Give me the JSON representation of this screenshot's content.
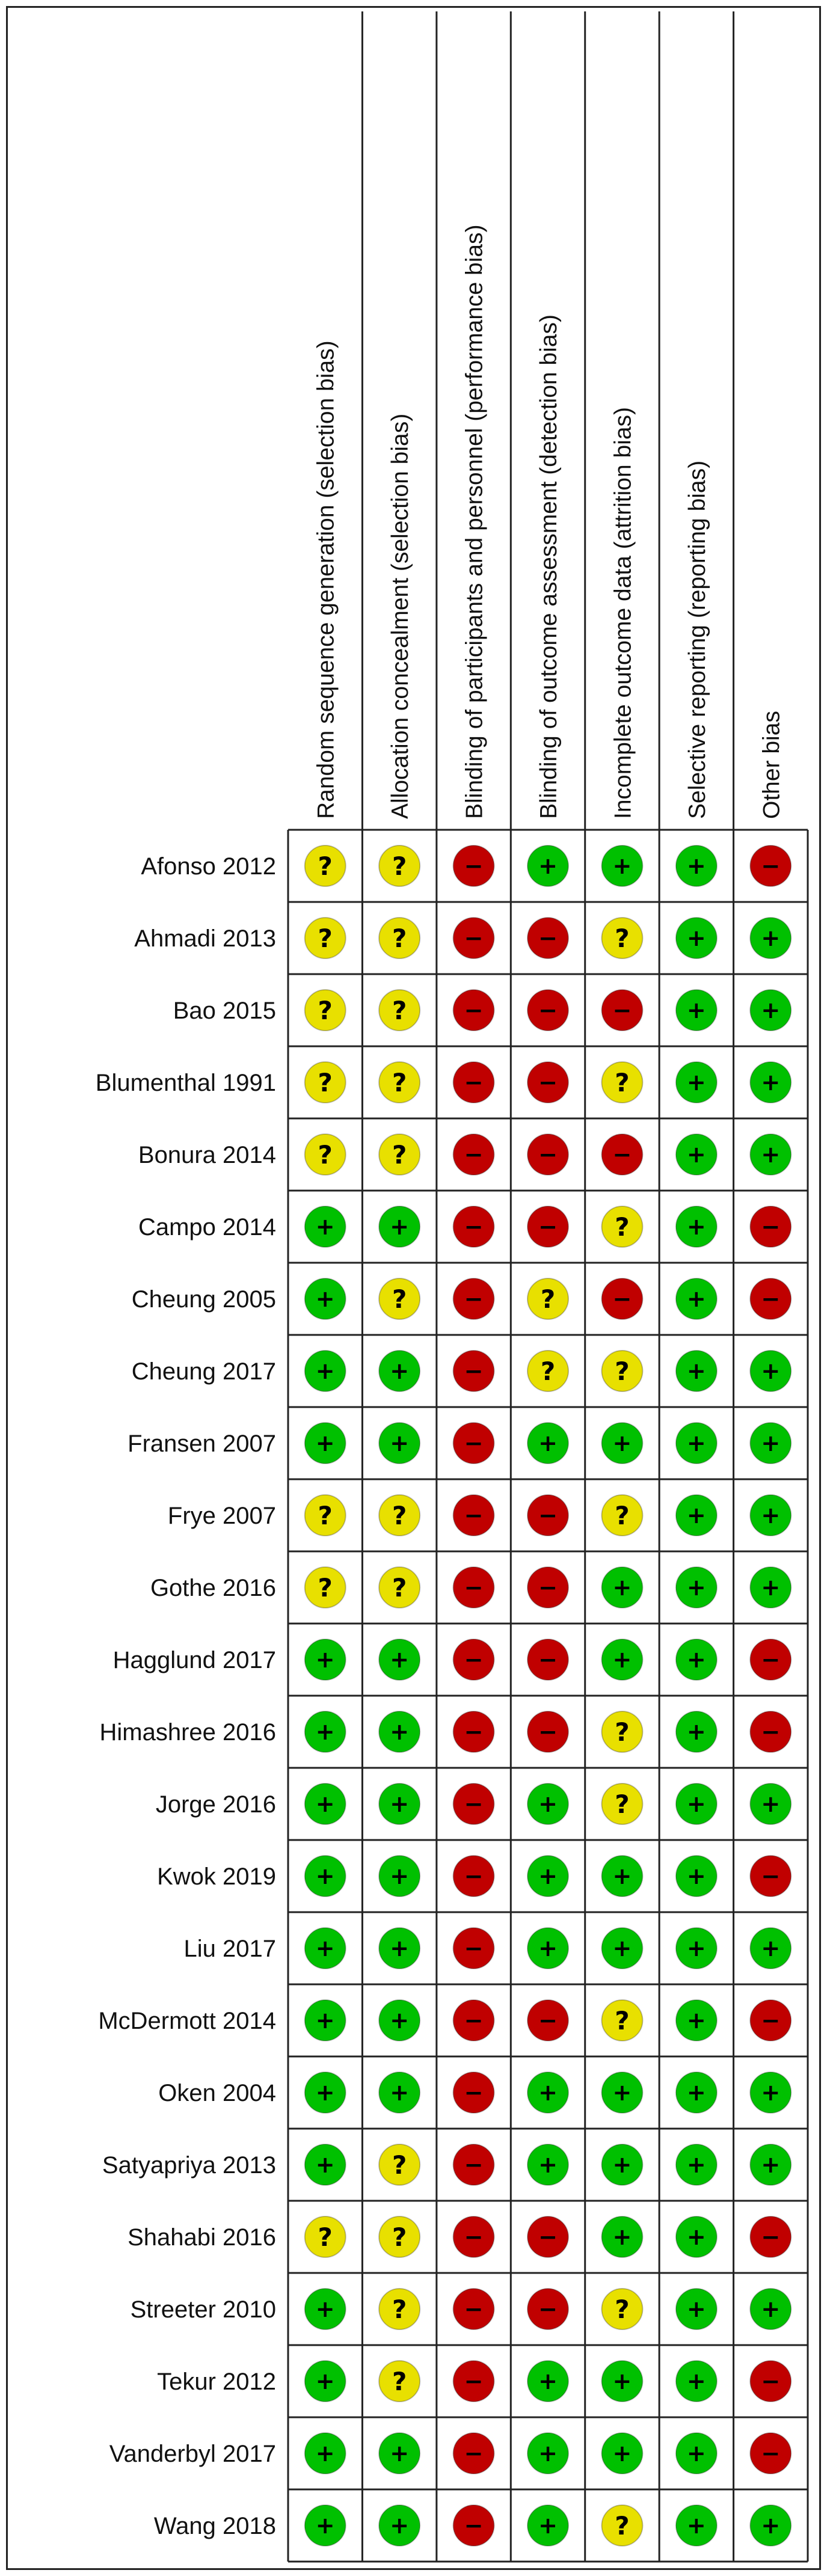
{
  "chart_data": {
    "type": "table",
    "columns": [
      "Random sequence generation (selection bias)",
      "Allocation concealment (selection bias)",
      "Blinding of participants and personnel (performance bias)",
      "Blinding of outcome assessment (detection bias)",
      "Incomplete outcome data (attrition bias)",
      "Selective reporting (reporting bias)",
      "Other bias"
    ],
    "rows": [
      {
        "study": "Afonso 2012",
        "ratings": [
          "unclear",
          "unclear",
          "high",
          "low",
          "low",
          "low",
          "high"
        ]
      },
      {
        "study": "Ahmadi 2013",
        "ratings": [
          "unclear",
          "unclear",
          "high",
          "high",
          "unclear",
          "low",
          "low"
        ]
      },
      {
        "study": "Bao 2015",
        "ratings": [
          "unclear",
          "unclear",
          "high",
          "high",
          "high",
          "low",
          "low"
        ]
      },
      {
        "study": "Blumenthal 1991",
        "ratings": [
          "unclear",
          "unclear",
          "high",
          "high",
          "unclear",
          "low",
          "low"
        ]
      },
      {
        "study": "Bonura 2014",
        "ratings": [
          "unclear",
          "unclear",
          "high",
          "high",
          "high",
          "low",
          "low"
        ]
      },
      {
        "study": "Campo 2014",
        "ratings": [
          "low",
          "low",
          "high",
          "high",
          "unclear",
          "low",
          "high"
        ]
      },
      {
        "study": "Cheung 2005",
        "ratings": [
          "low",
          "unclear",
          "high",
          "unclear",
          "high",
          "low",
          "high"
        ]
      },
      {
        "study": "Cheung 2017",
        "ratings": [
          "low",
          "low",
          "high",
          "unclear",
          "unclear",
          "low",
          "low"
        ]
      },
      {
        "study": "Fransen 2007",
        "ratings": [
          "low",
          "low",
          "high",
          "low",
          "low",
          "low",
          "low"
        ]
      },
      {
        "study": "Frye 2007",
        "ratings": [
          "unclear",
          "unclear",
          "high",
          "high",
          "unclear",
          "low",
          "low"
        ]
      },
      {
        "study": "Gothe 2016",
        "ratings": [
          "unclear",
          "unclear",
          "high",
          "high",
          "low",
          "low",
          "low"
        ]
      },
      {
        "study": "Hagglund 2017",
        "ratings": [
          "low",
          "low",
          "high",
          "high",
          "low",
          "low",
          "high"
        ]
      },
      {
        "study": "Himashree 2016",
        "ratings": [
          "low",
          "low",
          "high",
          "high",
          "unclear",
          "low",
          "high"
        ]
      },
      {
        "study": "Jorge 2016",
        "ratings": [
          "low",
          "low",
          "high",
          "low",
          "unclear",
          "low",
          "low"
        ]
      },
      {
        "study": "Kwok 2019",
        "ratings": [
          "low",
          "low",
          "high",
          "low",
          "low",
          "low",
          "high"
        ]
      },
      {
        "study": "Liu 2017",
        "ratings": [
          "low",
          "low",
          "high",
          "low",
          "low",
          "low",
          "low"
        ]
      },
      {
        "study": "McDermott 2014",
        "ratings": [
          "low",
          "low",
          "high",
          "high",
          "unclear",
          "low",
          "high"
        ]
      },
      {
        "study": "Oken 2004",
        "ratings": [
          "low",
          "low",
          "high",
          "low",
          "low",
          "low",
          "low"
        ]
      },
      {
        "study": "Satyapriya 2013",
        "ratings": [
          "low",
          "unclear",
          "high",
          "low",
          "low",
          "low",
          "low"
        ]
      },
      {
        "study": "Shahabi 2016",
        "ratings": [
          "unclear",
          "unclear",
          "high",
          "high",
          "low",
          "low",
          "high"
        ]
      },
      {
        "study": "Streeter 2010",
        "ratings": [
          "low",
          "unclear",
          "high",
          "high",
          "unclear",
          "low",
          "low"
        ]
      },
      {
        "study": "Tekur 2012",
        "ratings": [
          "low",
          "unclear",
          "high",
          "low",
          "low",
          "low",
          "high"
        ]
      },
      {
        "study": "Vanderbyl 2017",
        "ratings": [
          "low",
          "low",
          "high",
          "low",
          "low",
          "low",
          "high"
        ]
      },
      {
        "study": "Wang 2018",
        "ratings": [
          "low",
          "low",
          "high",
          "low",
          "unclear",
          "low",
          "low"
        ]
      }
    ],
    "legend": {
      "low": {
        "symbol": "+",
        "color": "#00c000"
      },
      "unclear": {
        "symbol": "?",
        "color": "#e8e000"
      },
      "high": {
        "symbol": "−",
        "color": "#c00000"
      }
    },
    "grid": true
  }
}
